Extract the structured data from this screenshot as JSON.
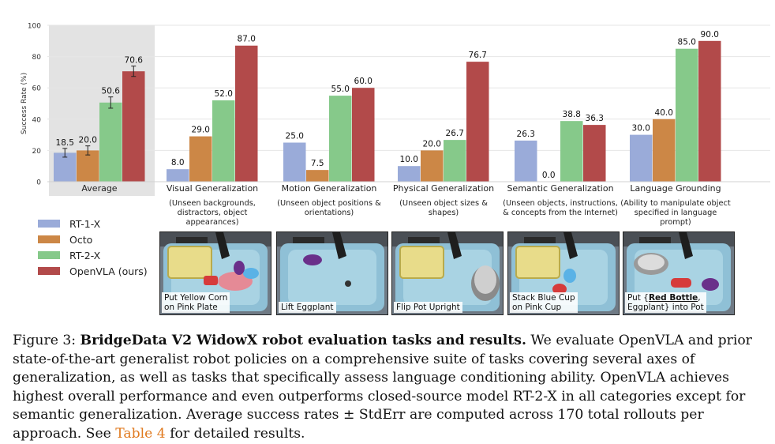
{
  "chart_data": {
    "type": "bar",
    "ylabel": "Success Rate (%)",
    "ylim": [
      0,
      100
    ],
    "yticks": [
      0,
      20,
      40,
      60,
      80,
      100
    ],
    "grid": true,
    "legend_position": "bottom-left",
    "categories": [
      "Average",
      "Visual Generalization",
      "Motion Generalization",
      "Physical Generalization",
      "Semantic Generalization",
      "Language Grounding"
    ],
    "subtitles": [
      "",
      "(Unseen backgrounds,\ndistractors, object\nappearances)",
      "(Unseen object positions &\norientations)",
      "(Unseen object sizes &\nshapes)",
      "(Unseen objects, instructions,\n& concepts from the Internet)",
      "(Ability to manipulate object\nspecified in language\nprompt)"
    ],
    "series": [
      {
        "name": "RT-1-X",
        "color": "#9aabd9",
        "values": [
          18.5,
          8.0,
          25.0,
          10.0,
          26.3,
          30.0
        ],
        "labels": [
          "18.5",
          "8.0",
          "25.0",
          "10.0",
          "26.3",
          "30.0"
        ]
      },
      {
        "name": "Octo",
        "color": "#cc8746",
        "values": [
          20.0,
          29.0,
          7.5,
          20.0,
          0.0,
          40.0
        ],
        "labels": [
          "20.0",
          "29.0",
          "7.5",
          "20.0",
          "0.0",
          "40.0"
        ]
      },
      {
        "name": "RT-2-X",
        "color": "#86c98a",
        "values": [
          50.6,
          52.0,
          55.0,
          26.7,
          38.8,
          85.0
        ],
        "labels": [
          "50.6",
          "52.0",
          "55.0",
          "26.7",
          "38.8",
          "85.0"
        ]
      },
      {
        "name": "OpenVLA (ours)",
        "color": "#b24a4a",
        "values": [
          70.6,
          87.0,
          60.0,
          76.7,
          36.3,
          90.0
        ],
        "labels": [
          "70.6",
          "87.0",
          "60.0",
          "76.7",
          "36.3",
          "90.0"
        ]
      }
    ],
    "error_bars_average": [
      2.8,
      2.9,
      3.6,
      3.3
    ],
    "highlight_first_group": true
  },
  "thumbnails": [
    {
      "caption": "Put Yellow Corn\non Pink Plate",
      "icon": "sink-corn-plate-photo"
    },
    {
      "caption": "Lift Eggplant",
      "icon": "sink-eggplant-photo"
    },
    {
      "caption": "Flip Pot Upright",
      "icon": "sink-pot-photo"
    },
    {
      "caption": "Stack Blue Cup\non Pink Cup",
      "icon": "sink-cups-photo"
    },
    {
      "caption_pre": "Put {",
      "caption_bold": "Red Bottle",
      "caption_post": ",\nEggplant} into Pot",
      "icon": "sink-bottle-pot-photo"
    }
  ],
  "figure_caption": {
    "label": "Figure 3: ",
    "title": "BridgeData V2 WidowX robot evaluation tasks and results.",
    "body_1": " We evaluate OpenVLA and prior state-of-the-art generalist robot policies on a comprehensive suite of tasks covering several axes of generalization, as well as tasks that specifically assess language conditioning ability. OpenVLA achieves highest overall performance and even outperforms closed-source model RT-2-X in all categories except for semantic generalization. Average success rates ± StdErr are computed across 170 total rollouts per approach. See ",
    "ref": "Table 4",
    "body_2": " for detailed results."
  }
}
